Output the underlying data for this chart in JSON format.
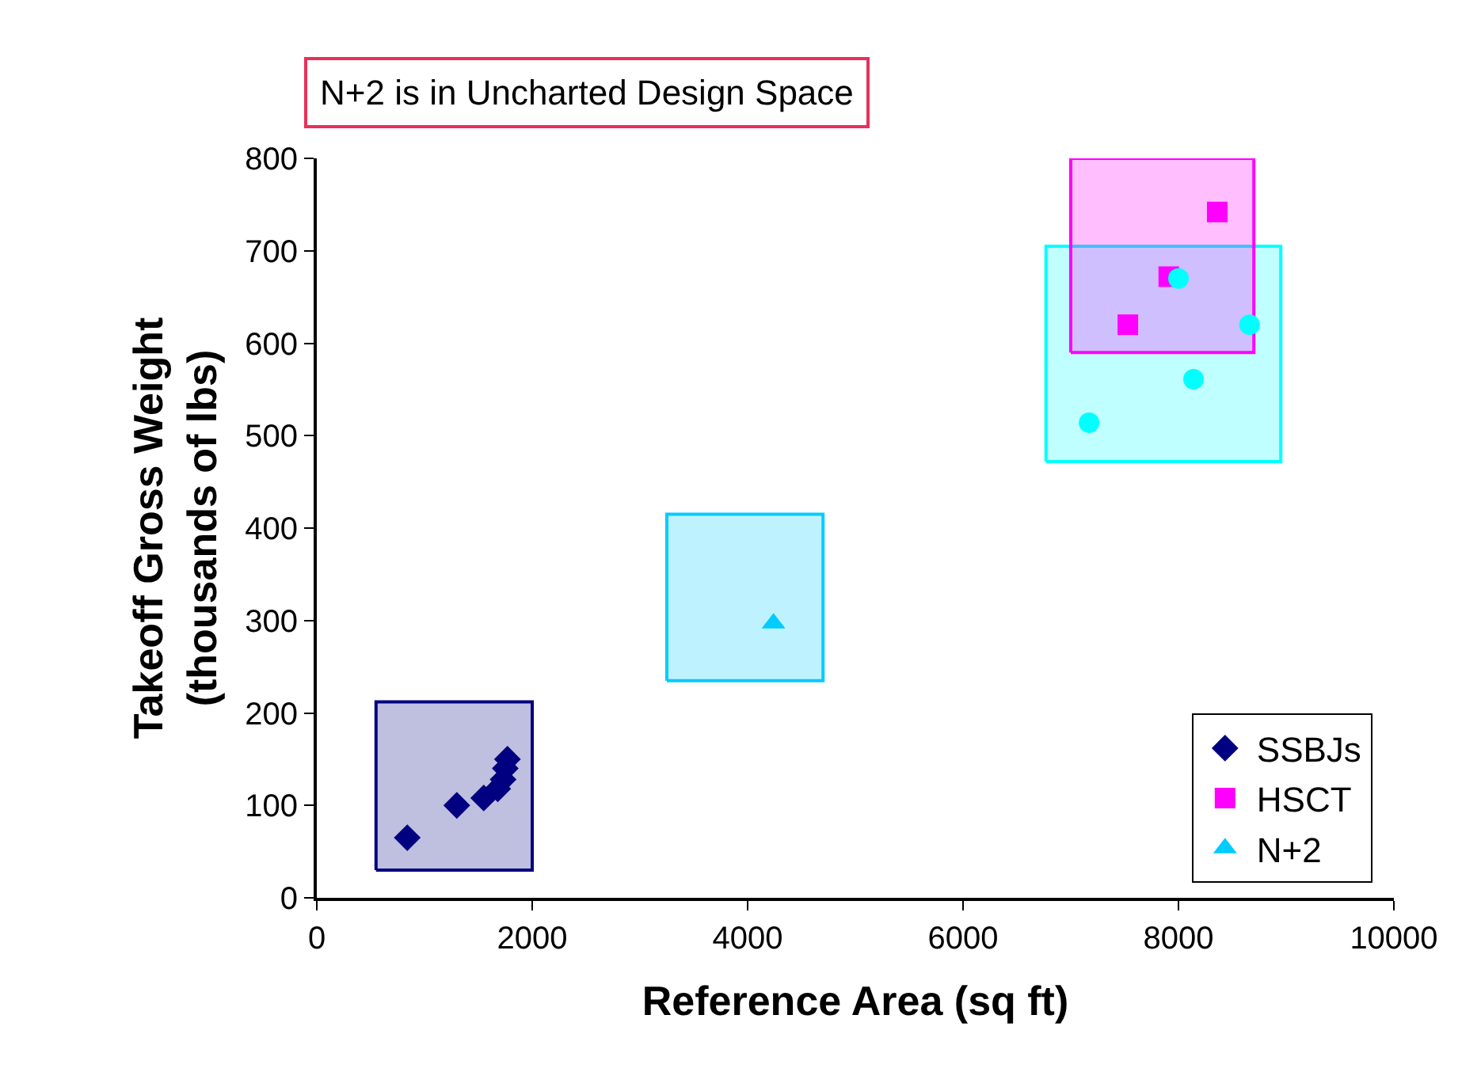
{
  "chart_data": {
    "type": "scatter",
    "title": "N+2 is in Uncharted Design Space",
    "xlabel": "Reference Area (sq ft)",
    "ylabel": "Takeoff Gross Weight\n(thousands of lbs)",
    "xlim": [
      0,
      10000
    ],
    "xticks": [
      0,
      2000,
      4000,
      6000,
      8000,
      10000
    ],
    "ylim": [
      0,
      800
    ],
    "yticks": [
      0,
      100,
      200,
      300,
      400,
      500,
      600,
      700,
      800
    ],
    "legend": "bottom right",
    "series": [
      {
        "type": "area",
        "color": "#000080",
        "x": [
          550,
          2000,
          2000,
          550,
          550
        ],
        "values": [
          30,
          30,
          212,
          212,
          30
        ]
      },
      {
        "type": "area",
        "color": "#00ccff",
        "x": [
          3250,
          4700,
          4700,
          3250,
          3250
        ],
        "values": [
          235,
          235,
          415,
          415,
          235
        ]
      },
      {
        "type": "area",
        "color": "#00ffff",
        "x": [
          6770,
          8950,
          8950,
          6770,
          6770
        ],
        "values": [
          472,
          472,
          705,
          705,
          472
        ]
      },
      {
        "type": "area",
        "color": "#ff00ff",
        "x": [
          7000,
          8700,
          8700,
          7000,
          7000
        ],
        "values": [
          590,
          590,
          800,
          800,
          590
        ]
      },
      {
        "name": "SSBJs",
        "color": "#000080",
        "marker": "diamond",
        "x": [
          840,
          1300,
          1550,
          1680,
          1730,
          1750,
          1770
        ],
        "values": [
          65,
          100,
          108,
          118,
          128,
          140,
          150
        ]
      },
      {
        "name": "HSCT",
        "color": "#ff00ff",
        "marker": "square",
        "x": [
          7530,
          7910,
          8360
        ],
        "values": [
          620,
          672,
          742
        ]
      },
      {
        "name": "N+2",
        "color": "#00ccff",
        "marker": "triangle",
        "x": [
          4240
        ],
        "values": [
          297
        ]
      },
      {
        "color": "#00ffff",
        "marker": "circle",
        "x": [
          7170,
          8000,
          8140,
          8660
        ],
        "values": [
          514,
          670,
          561,
          620
        ]
      }
    ]
  }
}
